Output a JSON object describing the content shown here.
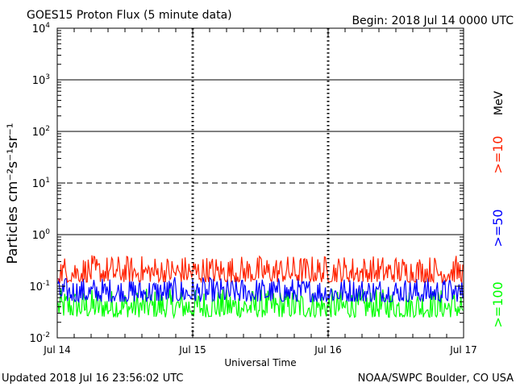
{
  "header": {
    "title": "GOES15 Proton Flux (5 minute data)",
    "begin": "Begin: 2018 Jul 14 0000 UTC"
  },
  "footer": {
    "updated": "Updated 2018 Jul 16 23:56:02 UTC",
    "credit": "NOAA/SWPC Boulder, CO USA"
  },
  "chart_data": {
    "type": "line",
    "title": "GOES15 Proton Flux (5 minute data)",
    "xlabel": "Universal Time",
    "ylabel": "Particles cm⁻²s⁻¹sr⁻¹",
    "y_scale": "log",
    "ylim": [
      0.01,
      10000
    ],
    "xlim": [
      "2018-07-14 00:00",
      "2018-07-17 00:00"
    ],
    "x_ticks": [
      "Jul 14",
      "Jul 15",
      "Jul 16",
      "Jul 17"
    ],
    "y_ticks": [
      {
        "base": "10",
        "exp": "-2"
      },
      {
        "base": "10",
        "exp": "-1"
      },
      {
        "base": "10",
        "exp": "0"
      },
      {
        "base": "10",
        "exp": "1"
      },
      {
        "base": "10",
        "exp": "2"
      },
      {
        "base": "10",
        "exp": "3"
      },
      {
        "base": "10",
        "exp": "4"
      }
    ],
    "threshold_lines": [
      {
        "value": 1,
        "style": "solid"
      },
      {
        "value": 10,
        "style": "dashed"
      },
      {
        "value": 100,
        "style": "solid"
      },
      {
        "value": 1000,
        "style": "solid"
      }
    ],
    "unit_label": "MeV",
    "series": [
      {
        "name": ">=10",
        "color": "#ff2200",
        "typical_range": [
          0.12,
          0.4
        ]
      },
      {
        "name": ">=50",
        "color": "#0000ff",
        "typical_range": [
          0.05,
          0.15
        ]
      },
      {
        "name": ">=100",
        "color": "#00ff00",
        "typical_range": [
          0.025,
          0.09
        ]
      }
    ],
    "grid": "day boundaries dashed"
  }
}
